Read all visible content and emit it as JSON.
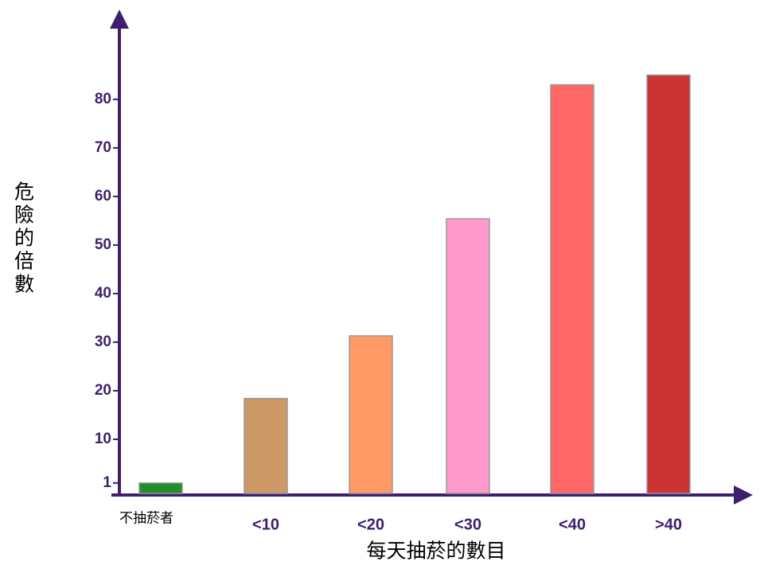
{
  "chart_data": {
    "type": "bar",
    "categories": [
      "不抽菸者",
      "<10",
      "<20",
      "<30",
      "<40",
      ">40"
    ],
    "values": [
      1,
      18.4,
      31.3,
      55.4,
      83,
      85
    ],
    "colors": [
      "#1f8f2e",
      "#cc9966",
      "#ff9966",
      "#ff99cc",
      "#ff6666",
      "#cc3333"
    ],
    "ylim": [
      0,
      98
    ],
    "yticks": [
      1,
      10,
      20,
      30,
      40,
      50,
      60,
      70,
      80
    ],
    "y_label": "危險的倍數",
    "x_label": "每天抽菸的數目"
  }
}
